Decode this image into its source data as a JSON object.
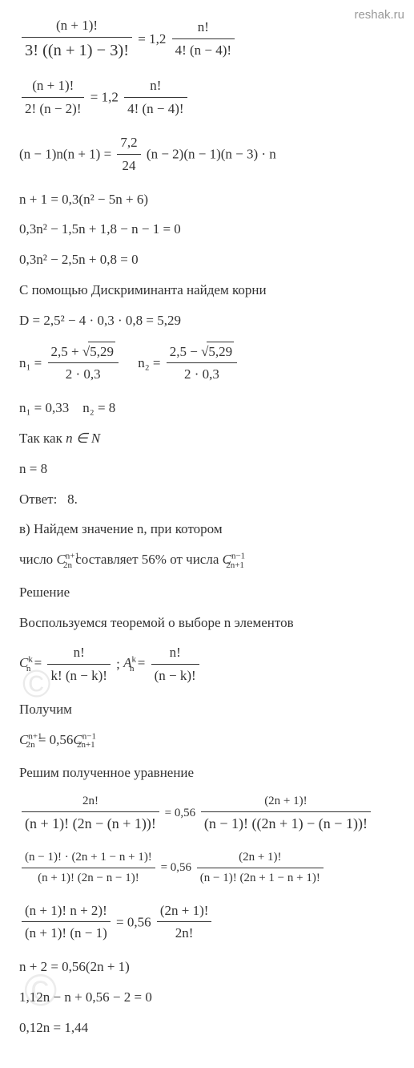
{
  "site": "reshak.ru",
  "watermark1": "©",
  "watermark2": "©",
  "eq1": {
    "num1": "(n + 1)!",
    "den1": "3! ((n + 1) − 3)!",
    "eq": "= 1,2",
    "num2": "n!",
    "den2": "4! (n − 4)!"
  },
  "eq2": {
    "num1": "(n + 1)!",
    "den1": "2! (n − 2)!",
    "eq": "= 1,2",
    "num2": "n!",
    "den2": "4! (n − 4)!"
  },
  "eq3": {
    "left": "(n − 1)n(n + 1) =",
    "num": "7,2",
    "den": "24",
    "right": "(n − 2)(n − 1)(n − 3) · n"
  },
  "eq4": "n + 1 = 0,3(n² − 5n + 6)",
  "eq5": "0,3n² − 1,5n + 1,8 − n − 1 = 0",
  "eq6": "0,3n² − 2,5n + 0,8 = 0",
  "txt1": "С помощью Дискриминанта найдем корни",
  "eq7": "D = 2,5² − 4 · 0,3 · 0,8 = 5,29",
  "eq8a": {
    "lhs": "n₁ =",
    "num": "2,5 + ",
    "rad": "5,29",
    "den": "2 · 0,3"
  },
  "eq8b": {
    "lhs": "n₂ =",
    "num": "2,5 − ",
    "rad": "5,29",
    "den": "2 · 0,3"
  },
  "eq9": "n₁ = 0,33    n₂ = 8",
  "txt2a": "Так как ",
  "txt2b": "n ∈ N",
  "eq10": "n = 8",
  "txt3": "Ответ:   8.",
  "txt4a": "в) Найдем значение n, при котором",
  "txt4b_a": "число ",
  "txt4b_b": " составляет 56% от числа ",
  "C1_base": "C",
  "C1_sup": "n+1",
  "C1_sub": "2n",
  "C2_base": "C",
  "C2_sup": "n−1",
  "C2_sub": "2n+1",
  "txt5": "Решение",
  "txt6": "Воспользуемся теоремой о выборе n элементов",
  "eq11": {
    "C": "C",
    "Csup": "k",
    "Csub": "n",
    "eq": "=",
    "num1": "n!",
    "den1": "k! (n − k)!",
    "sep": ";  ",
    "A": "A",
    "Asup": "k",
    "Asub": "n",
    "num2": "n!",
    "den2": "(n − k)!"
  },
  "txt7": "Получим",
  "eq12": {
    "left_base": "C",
    "left_sup": "n+1",
    "left_sub": "2n",
    "mid": " = 0,56",
    "right_base": "C",
    "right_sup": "n−1",
    "right_sub": "2n+1"
  },
  "txt8": "Решим полученное уравнение",
  "eq13": {
    "num1": "2n!",
    "den1": "(n + 1)! (2n − (n + 1))!",
    "eq": "= 0,56",
    "num2": "(2n + 1)!",
    "den2": "(n − 1)! ((2n + 1) − (n − 1))!"
  },
  "eq14": {
    "num1": "(n − 1)! · (2n + 1 − n + 1)!",
    "den1": "(n + 1)! (2n − n − 1)!",
    "eq": "= 0,56",
    "num2": "(2n + 1)!",
    "den2": "(n − 1)! (2n + 1 − n + 1)!"
  },
  "eq15": {
    "num1": "(n + 1)! n + 2)!",
    "den1": "(n + 1)! (n − 1)",
    "eq": "= 0,56",
    "num2": "(2n + 1)!",
    "den2": "2n!"
  },
  "eq16": "n + 2 = 0,56(2n + 1)",
  "eq17": "1,12n − n + 0,56 − 2 = 0",
  "eq18": "0,12n = 1,44",
  "styles": {
    "font_family": "Georgia, Times New Roman, serif",
    "font_size_pt": 13,
    "text_color": "#333333",
    "background_color": "#ffffff",
    "watermark_color": "#eaeaea",
    "site_label_color": "#999999"
  }
}
